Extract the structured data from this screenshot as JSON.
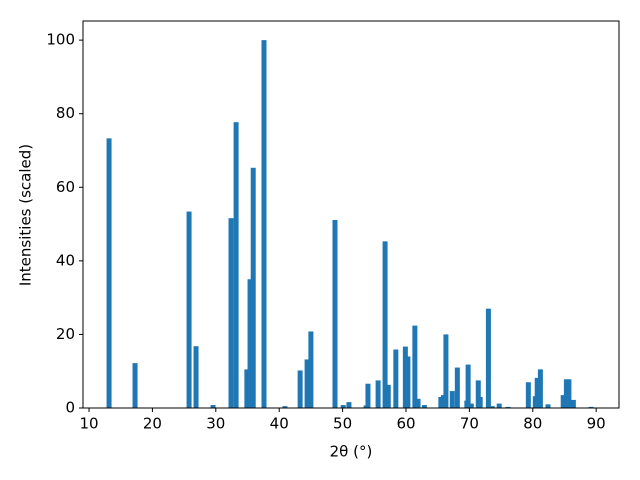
{
  "chart_data": {
    "type": "bar",
    "x_label": "2θ (°)",
    "y_label": "Intensities (scaled)",
    "x": [
      13.16,
      17.26,
      25.78,
      26.88,
      29.57,
      32.4,
      33.2,
      34.9,
      35.4,
      35.9,
      37.6,
      40.9,
      43.3,
      44.4,
      45.0,
      48.8,
      50.1,
      51.0,
      53.7,
      54.0,
      55.6,
      56.7,
      57.2,
      58.4,
      59.9,
      60.3,
      61.4,
      61.9,
      62.9,
      65.5,
      65.9,
      66.3,
      67.3,
      68.1,
      69.6,
      69.8,
      70.3,
      71.4,
      71.7,
      73.0,
      73.6,
      74.7,
      76.1,
      79.3,
      80.4,
      80.7,
      81.2,
      82.4,
      84.8,
      85.3,
      85.7,
      86.4,
      89.2
    ],
    "values": [
      73.3,
      12.2,
      53.4,
      16.8,
      0.8,
      51.6,
      77.7,
      10.5,
      35,
      65.3,
      100,
      0.5,
      10.2,
      13.2,
      20.8,
      51.1,
      0.8,
      1.6,
      0.7,
      6.6,
      7.5,
      45.3,
      6.3,
      15.9,
      16.7,
      14,
      22.4,
      2.5,
      0.8,
      3,
      3.5,
      20,
      4.6,
      11,
      2,
      11.8,
      1.2,
      7.5,
      3,
      27,
      0.5,
      1.2,
      0.3,
      7,
      3.2,
      8.2,
      10.5,
      1,
      3.5,
      7.8,
      7.8,
      2.2,
      0.3
    ],
    "color": "#1f77b4",
    "xlim": [
      9.05,
      93.6
    ],
    "xticks": [
      10,
      20,
      30,
      40,
      50,
      60,
      70,
      80,
      90
    ],
    "ylim": [
      0,
      105.2
    ],
    "yticks": [
      0,
      20,
      40,
      60,
      80,
      100
    ],
    "grid": false
  }
}
